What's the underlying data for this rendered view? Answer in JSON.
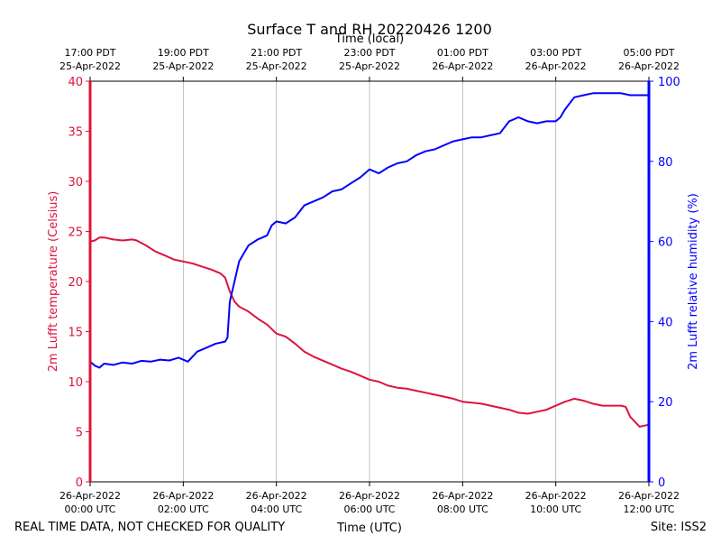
{
  "chart_data": {
    "type": "line",
    "title": "Surface T and RH 20220426 1200",
    "top_axis_label": "Time (local)",
    "xlabel": "Time (UTC)",
    "ylabel_left": "2m Lufft temperature (Celsius)",
    "ylabel_right": "2m Lufft relative humidity (%)",
    "footer_left": "REAL TIME DATA, NOT CHECKED FOR QUALITY",
    "footer_right": "Site: ISS2",
    "xlim": [
      0,
      12
    ],
    "ylim_left": [
      0,
      40
    ],
    "ylim_right": [
      0,
      100
    ],
    "left_ticks": [
      0,
      5,
      10,
      15,
      20,
      25,
      30,
      35,
      40
    ],
    "right_ticks": [
      0,
      20,
      40,
      60,
      80,
      100
    ],
    "grid": "vertical",
    "colors": {
      "temperature": "#dc143c",
      "humidity": "#0000ff",
      "grid": "#b0b0b0",
      "axis": "#000000"
    },
    "bottom_ticks": [
      {
        "x": 0,
        "line1": "26-Apr-2022",
        "line2": "00:00 UTC"
      },
      {
        "x": 2,
        "line1": "26-Apr-2022",
        "line2": "02:00 UTC"
      },
      {
        "x": 4,
        "line1": "26-Apr-2022",
        "line2": "04:00 UTC"
      },
      {
        "x": 6,
        "line1": "26-Apr-2022",
        "line2": "06:00 UTC"
      },
      {
        "x": 8,
        "line1": "26-Apr-2022",
        "line2": "08:00 UTC"
      },
      {
        "x": 10,
        "line1": "26-Apr-2022",
        "line2": "10:00 UTC"
      },
      {
        "x": 12,
        "line1": "26-Apr-2022",
        "line2": "12:00 UTC"
      }
    ],
    "top_ticks": [
      {
        "x": 0,
        "line1": "17:00 PDT",
        "line2": "25-Apr-2022"
      },
      {
        "x": 2,
        "line1": "19:00 PDT",
        "line2": "25-Apr-2022"
      },
      {
        "x": 4,
        "line1": "21:00 PDT",
        "line2": "25-Apr-2022"
      },
      {
        "x": 6,
        "line1": "23:00 PDT",
        "line2": "25-Apr-2022"
      },
      {
        "x": 8,
        "line1": "01:00 PDT",
        "line2": "26-Apr-2022"
      },
      {
        "x": 10,
        "line1": "03:00 PDT",
        "line2": "26-Apr-2022"
      },
      {
        "x": 12,
        "line1": "05:00 PDT",
        "line2": "26-Apr-2022"
      }
    ],
    "series": [
      {
        "name": "2m Lufft temperature (Celsius)",
        "axis": "left",
        "color": "#dc143c",
        "x": [
          0,
          0.1,
          0.2,
          0.3,
          0.5,
          0.7,
          0.9,
          1.0,
          1.2,
          1.4,
          1.6,
          1.8,
          2.0,
          2.2,
          2.4,
          2.6,
          2.8,
          2.9,
          3.0,
          3.1,
          3.2,
          3.4,
          3.6,
          3.8,
          4.0,
          4.2,
          4.4,
          4.6,
          4.8,
          5.0,
          5.2,
          5.4,
          5.6,
          5.8,
          6.0,
          6.2,
          6.4,
          6.6,
          6.8,
          7.0,
          7.2,
          7.4,
          7.6,
          7.8,
          8.0,
          8.2,
          8.4,
          8.6,
          8.8,
          9.0,
          9.2,
          9.4,
          9.6,
          9.8,
          10.0,
          10.2,
          10.4,
          10.6,
          10.8,
          11.0,
          11.2,
          11.4,
          11.5,
          11.6,
          11.8,
          12.0
        ],
        "values": [
          24.0,
          24.1,
          24.4,
          24.4,
          24.2,
          24.1,
          24.2,
          24.1,
          23.6,
          23.0,
          22.6,
          22.2,
          22.0,
          21.8,
          21.5,
          21.2,
          20.8,
          20.4,
          19.0,
          18.0,
          17.5,
          17.0,
          16.3,
          15.7,
          14.8,
          14.5,
          13.8,
          13.0,
          12.5,
          12.1,
          11.7,
          11.3,
          11.0,
          10.6,
          10.2,
          10.0,
          9.6,
          9.4,
          9.3,
          9.1,
          8.9,
          8.7,
          8.5,
          8.3,
          8.0,
          7.9,
          7.8,
          7.6,
          7.4,
          7.2,
          6.9,
          6.8,
          7.0,
          7.2,
          7.6,
          8.0,
          8.3,
          8.1,
          7.8,
          7.6,
          7.6,
          7.6,
          7.5,
          6.5,
          5.5,
          5.7
        ]
      },
      {
        "name": "2m Lufft relative humidity (%)",
        "axis": "right",
        "color": "#0000ff",
        "x": [
          0,
          0.1,
          0.2,
          0.3,
          0.5,
          0.7,
          0.9,
          1.1,
          1.3,
          1.5,
          1.7,
          1.9,
          2.1,
          2.3,
          2.5,
          2.7,
          2.9,
          2.95,
          3.0,
          3.1,
          3.2,
          3.3,
          3.4,
          3.6,
          3.8,
          3.9,
          4.0,
          4.2,
          4.4,
          4.6,
          4.8,
          5.0,
          5.2,
          5.4,
          5.6,
          5.8,
          6.0,
          6.2,
          6.4,
          6.6,
          6.8,
          7.0,
          7.2,
          7.4,
          7.6,
          7.8,
          8.0,
          8.2,
          8.4,
          8.6,
          8.8,
          9.0,
          9.2,
          9.4,
          9.6,
          9.8,
          10.0,
          10.1,
          10.2,
          10.4,
          10.6,
          10.8,
          11.0,
          11.2,
          11.4,
          11.6,
          11.8,
          12.0
        ],
        "values": [
          30,
          29,
          28.5,
          29.5,
          29.2,
          29.8,
          29.5,
          30.2,
          30.0,
          30.5,
          30.3,
          31.0,
          30.0,
          32.5,
          33.5,
          34.5,
          35.0,
          36.0,
          45.0,
          50.0,
          55.0,
          57.0,
          59.0,
          60.5,
          61.5,
          64.0,
          65.0,
          64.5,
          66.0,
          69.0,
          70.0,
          71.0,
          72.5,
          73.0,
          74.5,
          76.0,
          78.0,
          77.0,
          78.5,
          79.5,
          80.0,
          81.5,
          82.5,
          83.0,
          84.0,
          85.0,
          85.5,
          86.0,
          86.0,
          86.5,
          87.0,
          90.0,
          91.0,
          90.0,
          89.5,
          90.0,
          90.0,
          91.0,
          93.0,
          96.0,
          96.5,
          97.0,
          97.0,
          97.0,
          97.0,
          96.5,
          96.5,
          96.5
        ]
      }
    ]
  }
}
